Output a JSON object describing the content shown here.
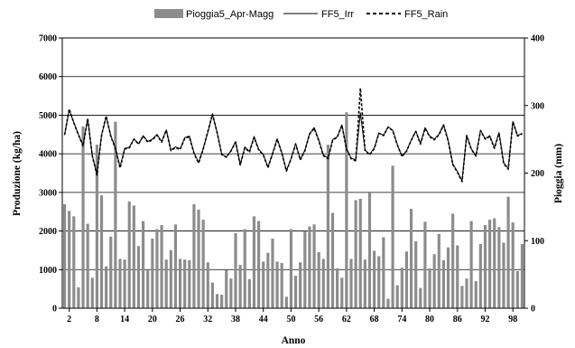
{
  "chart_data": {
    "type": "bar",
    "legend": {
      "position": "top",
      "entries": [
        "Pioggia5_Apr-Magg",
        "FF5_Irr",
        "FF5_Rain"
      ]
    },
    "xlabel": "Anno",
    "ylabel_left": "Produzione (kg/ha)",
    "ylabel_right": "Pioggia (mm)",
    "ylim_left": [
      0,
      7000
    ],
    "ylim_right": [
      0,
      400
    ],
    "yticks_left": [
      "0",
      "1000",
      "2000",
      "3000",
      "4000",
      "5000",
      "6000",
      "7000"
    ],
    "yticks_right": [
      "0",
      "100",
      "200",
      "300",
      "400"
    ],
    "xtick_labels": [
      "2",
      "8",
      "14",
      "20",
      "26",
      "32",
      "38",
      "44",
      "50",
      "56",
      "62",
      "68",
      "74",
      "80",
      "86",
      "92",
      "98"
    ],
    "grid": "horizontal gridlines at left-axis major ticks",
    "colors": {
      "bars": "#8c8c8c",
      "lines": "#000000"
    },
    "x": [
      1,
      2,
      3,
      4,
      5,
      6,
      7,
      8,
      9,
      10,
      11,
      12,
      13,
      14,
      15,
      16,
      17,
      18,
      19,
      20,
      21,
      22,
      23,
      24,
      25,
      26,
      27,
      28,
      29,
      30,
      31,
      32,
      33,
      34,
      35,
      36,
      37,
      38,
      39,
      40,
      41,
      42,
      43,
      44,
      45,
      46,
      47,
      48,
      49,
      50,
      51,
      52,
      53,
      54,
      55,
      56,
      57,
      58,
      59,
      60,
      61,
      62,
      63,
      64,
      65,
      66,
      67,
      68,
      69,
      70,
      71,
      72,
      73,
      74,
      75,
      76,
      77,
      78,
      79,
      80,
      81,
      82,
      83,
      84,
      85,
      86,
      87,
      88,
      89,
      90,
      91,
      92,
      93,
      94,
      95,
      96,
      97,
      98,
      99,
      100
    ],
    "series": [
      {
        "name": "Pioggia5_Apr-Magg",
        "type": "bar",
        "axis": "right",
        "values": [
          154,
          144,
          136,
          31,
          269,
          125,
          45,
          242,
          167,
          62,
          106,
          276,
          73,
          72,
          158,
          152,
          92,
          129,
          56,
          103,
          117,
          123,
          72,
          86,
          124,
          73,
          72,
          71,
          154,
          146,
          131,
          68,
          38,
          21,
          20,
          57,
          44,
          111,
          64,
          117,
          43,
          136,
          129,
          69,
          82,
          103,
          69,
          67,
          17,
          117,
          48,
          68,
          114,
          121,
          124,
          83,
          73,
          242,
          141,
          59,
          45,
          290,
          73,
          160,
          162,
          72,
          171,
          85,
          77,
          105,
          14,
          211,
          34,
          60,
          84,
          147,
          99,
          30,
          128,
          59,
          80,
          110,
          71,
          90,
          140,
          93,
          33,
          44,
          129,
          40,
          95,
          123,
          131,
          133,
          120,
          97,
          165,
          127,
          55,
          95
        ]
      },
      {
        "name": "FF5_Irr",
        "type": "line",
        "axis": "left",
        "values": [
          4490,
          5140,
          4810,
          4500,
          4220,
          4900,
          3950,
          3480,
          4490,
          4960,
          4470,
          4150,
          3660,
          4140,
          4170,
          4390,
          4260,
          4470,
          4320,
          4380,
          4500,
          4320,
          4620,
          4100,
          4180,
          4130,
          4420,
          4460,
          4030,
          3770,
          4140,
          4560,
          5010,
          4560,
          3990,
          3920,
          4080,
          4320,
          3720,
          4180,
          4060,
          4450,
          4120,
          3980,
          3650,
          4010,
          4390,
          4030,
          3570,
          3880,
          4270,
          3850,
          4100,
          4520,
          4680,
          4360,
          3970,
          3890,
          4370,
          4440,
          4750,
          4140,
          3890,
          3840,
          5060,
          4100,
          3990,
          4150,
          4540,
          4480,
          4700,
          4610,
          4240,
          3940,
          4080,
          4360,
          4590,
          4270,
          4680,
          4460,
          4380,
          4510,
          4760,
          4350,
          3740,
          3540,
          3300,
          4480,
          4130,
          3950,
          4610,
          4390,
          4470,
          4160,
          4550,
          3770,
          3620,
          4840,
          4470,
          4530
        ]
      },
      {
        "name": "FF5_Rain",
        "type": "line",
        "axis": "left",
        "values": [
          4490,
          5160,
          4800,
          4490,
          4200,
          4920,
          3940,
          3450,
          4480,
          4980,
          4450,
          4140,
          3630,
          4120,
          4150,
          4380,
          4250,
          4460,
          4300,
          4360,
          4480,
          4300,
          4610,
          4080,
          4160,
          4110,
          4400,
          4440,
          4010,
          3760,
          4130,
          4580,
          5030,
          4550,
          3980,
          3910,
          4070,
          4300,
          3710,
          4160,
          4040,
          4430,
          4100,
          3970,
          3640,
          4000,
          4380,
          4020,
          3550,
          3870,
          4250,
          3840,
          4080,
          4510,
          4660,
          4340,
          3950,
          3870,
          4350,
          4430,
          4740,
          4120,
          3870,
          3820,
          5700,
          4090,
          3970,
          4130,
          4530,
          4470,
          4690,
          4600,
          4230,
          3930,
          4070,
          4350,
          4580,
          4250,
          4660,
          4440,
          4360,
          4490,
          4740,
          4330,
          3720,
          3520,
          3280,
          4470,
          4120,
          3940,
          4600,
          4380,
          4450,
          4140,
          4530,
          3750,
          3600,
          4830,
          4460,
          4520
        ]
      }
    ]
  }
}
